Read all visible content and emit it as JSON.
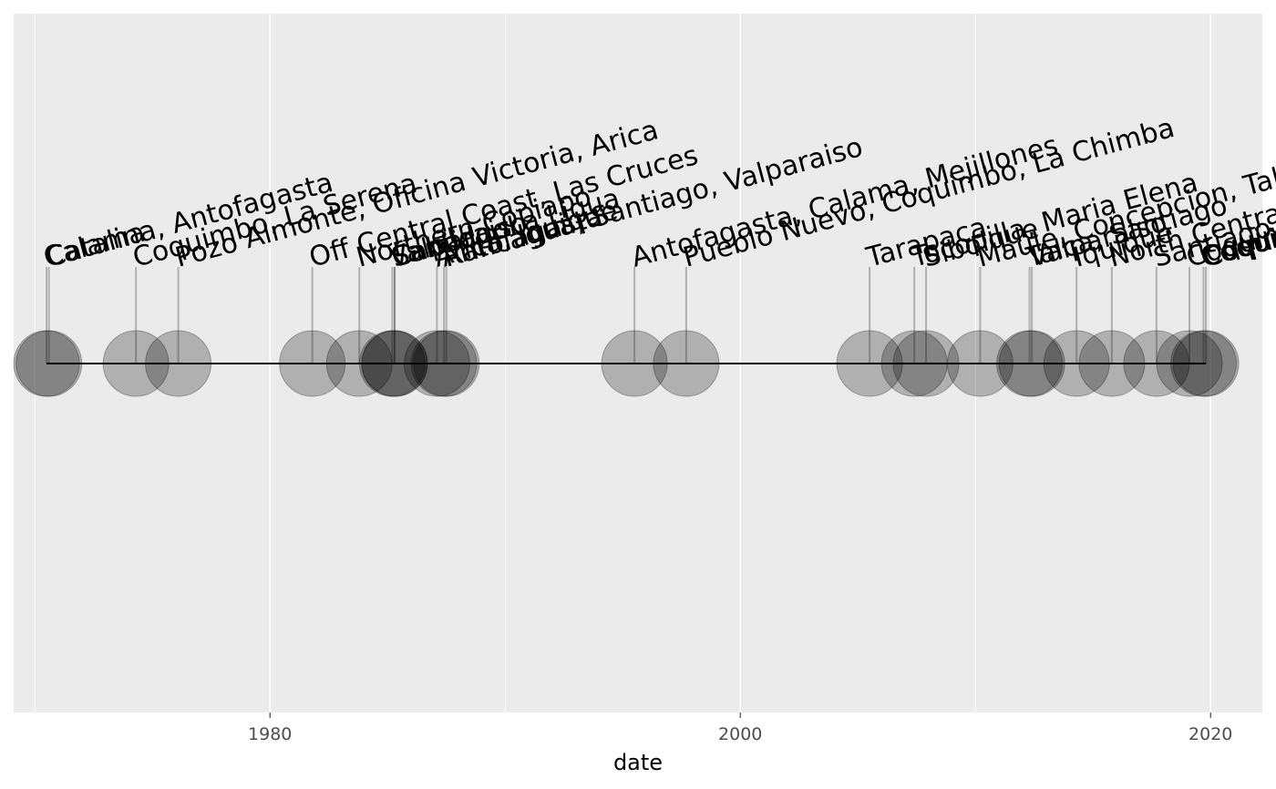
{
  "chart_data": {
    "type": "scatter",
    "title": "",
    "xlabel": "date",
    "ylabel": "",
    "xlim": [
      1969.1,
      2022.2
    ],
    "x_ticks": [
      1980,
      2000,
      2020
    ],
    "x_tick_labels": [
      "1980",
      "2000",
      "2020"
    ],
    "x_minor_ticks": [
      1970,
      1990,
      2010
    ],
    "grid": true,
    "legend": "none",
    "marker_color": "#000000",
    "panel_color": "#ebebeb",
    "events": [
      {
        "x": 1970.5,
        "label": "Calama"
      },
      {
        "x": 1970.6,
        "label": "Catalina, Antofagasta"
      },
      {
        "x": 1974.3,
        "label": "Coquimbo, La Serena"
      },
      {
        "x": 1976.1,
        "label": "Pozo Almonte, Oficina Victoria, Arica"
      },
      {
        "x": 1981.8,
        "label": "Off Central Coast, Las Cruces"
      },
      {
        "x": 1983.8,
        "label": "Northern Copiapo"
      },
      {
        "x": 1985.2,
        "label": "Valparaiso"
      },
      {
        "x": 1985.3,
        "label": "Santiago"
      },
      {
        "x": 1985.3,
        "label": "Cabildo, La Ligua"
      },
      {
        "x": 1987.1,
        "label": "Arica, Iquique"
      },
      {
        "x": 1987.4,
        "label": "Antofagasta"
      },
      {
        "x": 1987.5,
        "label": "Rancagua, Santiago, Valparaiso"
      },
      {
        "x": 1995.5,
        "label": "Antofagasta, Calama, Mejillones"
      },
      {
        "x": 1997.7,
        "label": "Pueblo Nuevo, Coquimbo, La Chimba"
      },
      {
        "x": 2005.5,
        "label": "Tarapaca"
      },
      {
        "x": 2007.4,
        "label": "Tocopilla, Maria Elena"
      },
      {
        "x": 2007.9,
        "label": "Sibolque"
      },
      {
        "x": 2010.2,
        "label": "Maule, Concepcion, Talca"
      },
      {
        "x": 2012.3,
        "label": "Talca, Santiago"
      },
      {
        "x": 2012.4,
        "label": "Valparaiso"
      },
      {
        "x": 2014.3,
        "label": "Iquique"
      },
      {
        "x": 2015.8,
        "label": "North Central, Iquique"
      },
      {
        "x": 2017.7,
        "label": "Santiago"
      },
      {
        "x": 2019.1,
        "label": "Coquimbo"
      },
      {
        "x": 2019.7,
        "label": "Coquimbo"
      },
      {
        "x": 2019.8,
        "label": "Coquimbo"
      }
    ]
  }
}
